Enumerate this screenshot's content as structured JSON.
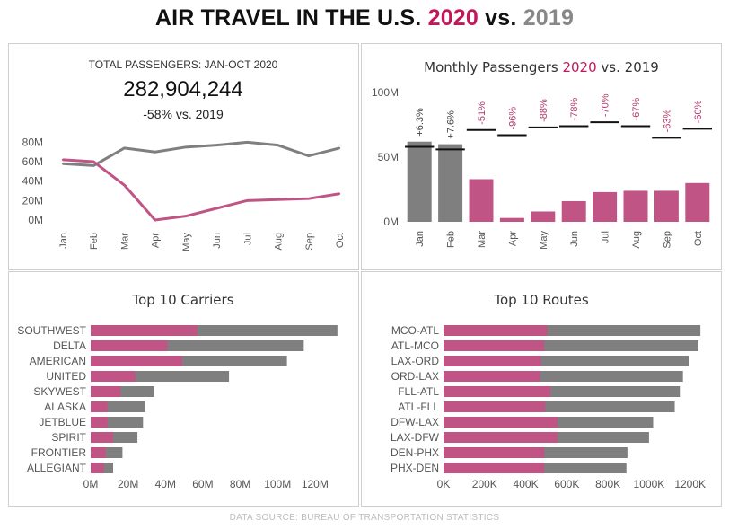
{
  "header": {
    "title_prefix": "AIR TRAVEL IN THE U.S.",
    "year_a": "2020",
    "vs": "vs.",
    "year_b": "2019"
  },
  "colors": {
    "y2020": "#c05585",
    "y2019": "#7f7f7f",
    "ref": "#111111",
    "axis_text": "#555555"
  },
  "kpi": {
    "label": "TOTAL PASSENGERS: JAN-OCT 2020",
    "value": "282,904,244",
    "change": "-58% vs. 2019"
  },
  "footer": {
    "source": "DATA SOURCE: BUREAU OF TRANSPORTATION STATISTICS"
  },
  "chart_data": [
    {
      "type": "line",
      "title": "",
      "categories": [
        "Jan",
        "Feb",
        "Mar",
        "Apr",
        "May",
        "Jun",
        "Jul",
        "Aug",
        "Sep",
        "Oct"
      ],
      "series": [
        {
          "name": "2019",
          "values": [
            58,
            56,
            74,
            70,
            75,
            77,
            80,
            77,
            66,
            74
          ]
        },
        {
          "name": "2020",
          "values": [
            62,
            60,
            36,
            0,
            4,
            12,
            20,
            21,
            22,
            27
          ]
        }
      ],
      "y_ticks": [
        {
          "value": 80,
          "label": "80M"
        },
        {
          "value": 60,
          "label": "60M"
        },
        {
          "value": 40,
          "label": "40M"
        },
        {
          "value": 20,
          "label": "20M"
        },
        {
          "value": 0,
          "label": "0M"
        }
      ],
      "ylim": [
        0,
        85
      ]
    },
    {
      "type": "bar",
      "title_prefix": "Monthly Passengers",
      "title_year_a": "2020",
      "title_vs": "vs.",
      "title_year_b": "2019",
      "categories": [
        "Jan",
        "Feb",
        "Mar",
        "Apr",
        "May",
        "Jun",
        "Jul",
        "Aug",
        "Sep",
        "Oct"
      ],
      "values_2020": [
        62,
        60,
        33,
        3,
        8,
        16,
        23,
        24,
        24,
        30
      ],
      "values_2019": [
        58,
        56,
        71,
        67,
        73,
        74,
        77,
        74,
        65,
        72
      ],
      "labels": [
        "+6.3%",
        "+7.6%",
        "-51%",
        "-96%",
        "-88%",
        "-78%",
        "-70%",
        "-67%",
        "-63%",
        "-60%"
      ],
      "y_ticks": [
        {
          "value": 100,
          "label": "100M"
        },
        {
          "value": 50,
          "label": "50M"
        },
        {
          "value": 0,
          "label": "0M"
        }
      ],
      "ylim": [
        0,
        100
      ]
    },
    {
      "type": "bar",
      "orientation": "horizontal",
      "title": "Top 10 Carriers",
      "categories": [
        "SOUTHWEST",
        "DELTA",
        "AMERICAN",
        "UNITED",
        "SKYWEST",
        "ALASKA",
        "JETBLUE",
        "SPIRIT",
        "FRONTIER",
        "ALLEGIANT"
      ],
      "values_2020": [
        57,
        41,
        49,
        24,
        16,
        9,
        9,
        12,
        8,
        7
      ],
      "values_total": [
        132,
        114,
        105,
        74,
        34,
        29,
        28,
        25,
        17,
        12
      ],
      "x_ticks": [
        {
          "value": 0,
          "label": "0M"
        },
        {
          "value": 20,
          "label": "20M"
        },
        {
          "value": 40,
          "label": "40M"
        },
        {
          "value": 60,
          "label": "60M"
        },
        {
          "value": 80,
          "label": "80M"
        },
        {
          "value": 100,
          "label": "100M"
        },
        {
          "value": 120,
          "label": "120M"
        }
      ],
      "xlim": [
        0,
        134
      ]
    },
    {
      "type": "bar",
      "orientation": "horizontal",
      "title": "Top 10 Routes",
      "categories": [
        "MCO-ATL",
        "ATL-MCO",
        "LAX-ORD",
        "ORD-LAX",
        "FLL-ATL",
        "ATL-FLL",
        "DFW-LAX",
        "LAX-DFW",
        "DEN-PHX",
        "PHX-DEN"
      ],
      "values_2020": [
        505,
        490,
        475,
        470,
        520,
        495,
        555,
        555,
        490,
        490
      ],
      "values_total": [
        1250,
        1240,
        1195,
        1165,
        1150,
        1125,
        1020,
        1000,
        895,
        890
      ],
      "x_ticks": [
        {
          "value": 0,
          "label": "0K"
        },
        {
          "value": 200,
          "label": "200K"
        },
        {
          "value": 400,
          "label": "400K"
        },
        {
          "value": 600,
          "label": "600K"
        },
        {
          "value": 800,
          "label": "800K"
        },
        {
          "value": 1000,
          "label": "1000K"
        },
        {
          "value": 1200,
          "label": "1200K"
        }
      ],
      "xlim": [
        0,
        1280
      ]
    }
  ]
}
